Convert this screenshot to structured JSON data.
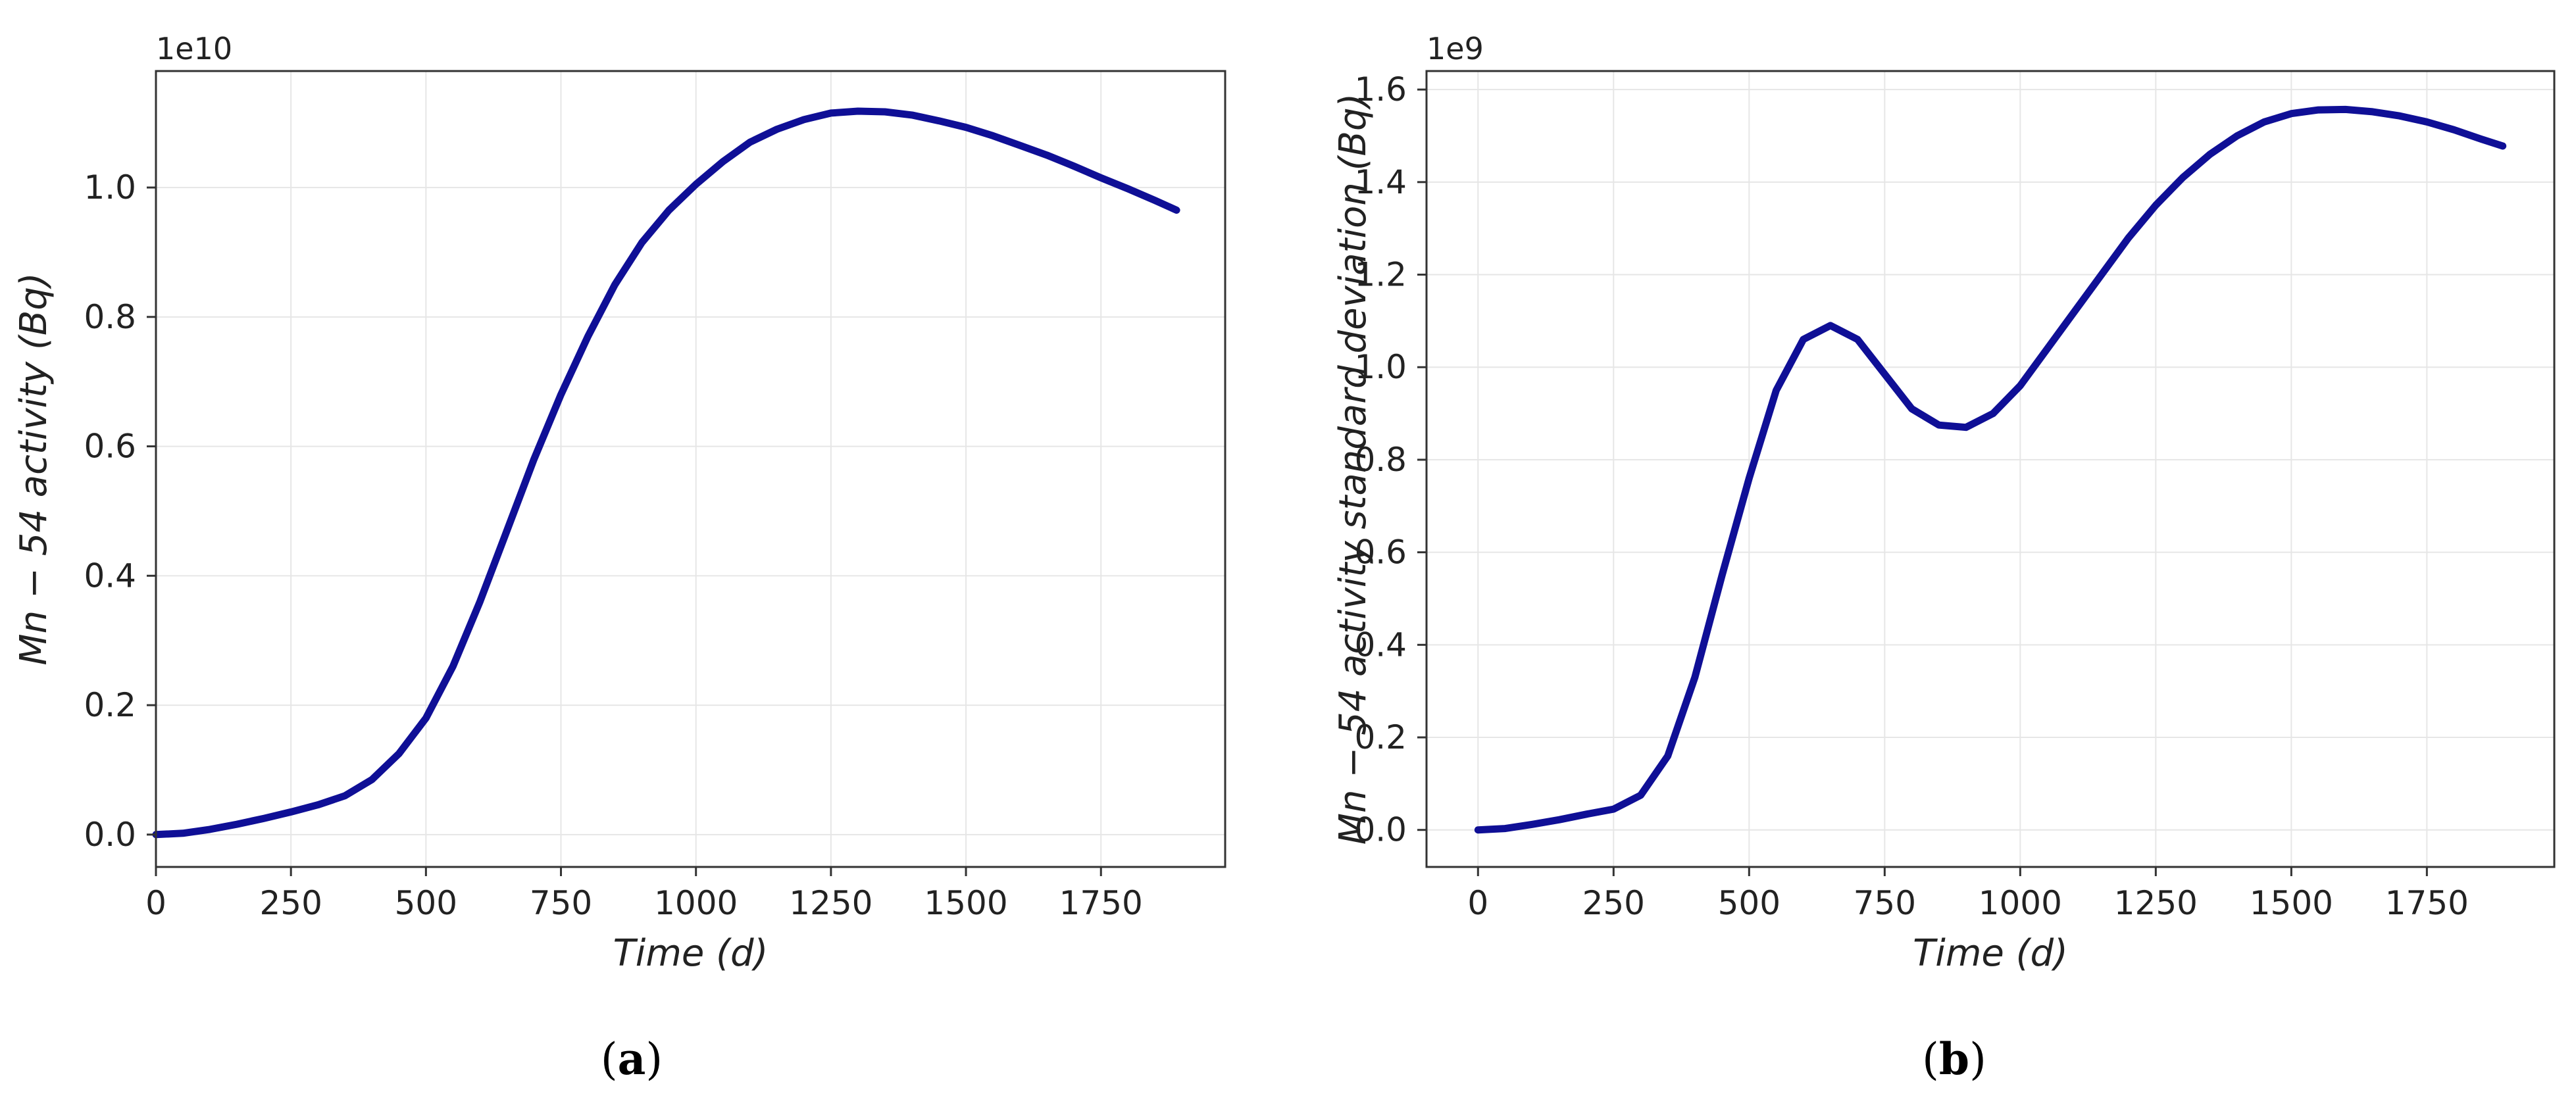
{
  "line_color": "#0f0f96",
  "chart_data": [
    {
      "type": "line",
      "caption_letter": "a",
      "xlabel": "Time (d)",
      "ylabel": "Mn − 54 activity (Bq)",
      "y_scale_label": "1e10",
      "xlim": [
        0,
        1980
      ],
      "ylim": [
        -0.05,
        1.18
      ],
      "xticks": [
        0,
        250,
        500,
        750,
        1000,
        1250,
        1500,
        1750
      ],
      "yticks": [
        0.0,
        0.2,
        0.4,
        0.6,
        0.8,
        1.0
      ],
      "ytick_labels": [
        "0.0",
        "0.2",
        "0.4",
        "0.6",
        "0.8",
        "1.0"
      ],
      "grid": true,
      "series": [
        {
          "x": [
            0,
            50,
            100,
            150,
            200,
            250,
            300,
            350,
            400,
            450,
            500,
            550,
            600,
            650,
            700,
            750,
            800,
            850,
            900,
            950,
            1000,
            1050,
            1100,
            1150,
            1200,
            1250,
            1300,
            1350,
            1400,
            1450,
            1500,
            1550,
            1600,
            1650,
            1700,
            1750,
            1800,
            1850,
            1890
          ],
          "y": [
            0.0,
            0.002,
            0.008,
            0.016,
            0.025,
            0.035,
            0.046,
            0.06,
            0.085,
            0.125,
            0.18,
            0.26,
            0.36,
            0.47,
            0.58,
            0.68,
            0.77,
            0.85,
            0.915,
            0.965,
            1.005,
            1.04,
            1.07,
            1.09,
            1.105,
            1.115,
            1.118,
            1.117,
            1.112,
            1.103,
            1.093,
            1.08,
            1.065,
            1.05,
            1.033,
            1.015,
            0.998,
            0.98,
            0.965
          ]
        }
      ]
    },
    {
      "type": "line",
      "caption_letter": "b",
      "xlabel": "Time (d)",
      "ylabel": "Mn − 54 activity standard deviation (Bq)",
      "y_scale_label": "1e9",
      "xlim": [
        -95,
        1985
      ],
      "ylim": [
        -0.08,
        1.64
      ],
      "xticks": [
        0,
        250,
        500,
        750,
        1000,
        1250,
        1500,
        1750
      ],
      "yticks": [
        0.0,
        0.2,
        0.4,
        0.6,
        0.8,
        1.0,
        1.2,
        1.4,
        1.6
      ],
      "ytick_labels": [
        "0.0",
        "0.2",
        "0.4",
        "0.6",
        "0.8",
        "1.0",
        "1.2",
        "1.4",
        "1.6"
      ],
      "grid": true,
      "series": [
        {
          "x": [
            0,
            50,
            100,
            150,
            200,
            250,
            300,
            350,
            400,
            450,
            500,
            550,
            600,
            650,
            700,
            750,
            800,
            850,
            900,
            950,
            1000,
            1050,
            1100,
            1150,
            1200,
            1250,
            1300,
            1350,
            1400,
            1450,
            1500,
            1550,
            1600,
            1650,
            1700,
            1750,
            1800,
            1850,
            1890
          ],
          "y": [
            0.0,
            0.003,
            0.012,
            0.022,
            0.034,
            0.045,
            0.075,
            0.16,
            0.33,
            0.55,
            0.76,
            0.95,
            1.06,
            1.09,
            1.06,
            0.985,
            0.91,
            0.875,
            0.87,
            0.9,
            0.96,
            1.04,
            1.12,
            1.2,
            1.28,
            1.35,
            1.41,
            1.46,
            1.5,
            1.53,
            1.548,
            1.556,
            1.557,
            1.552,
            1.543,
            1.53,
            1.513,
            1.493,
            1.478
          ]
        }
      ]
    }
  ]
}
